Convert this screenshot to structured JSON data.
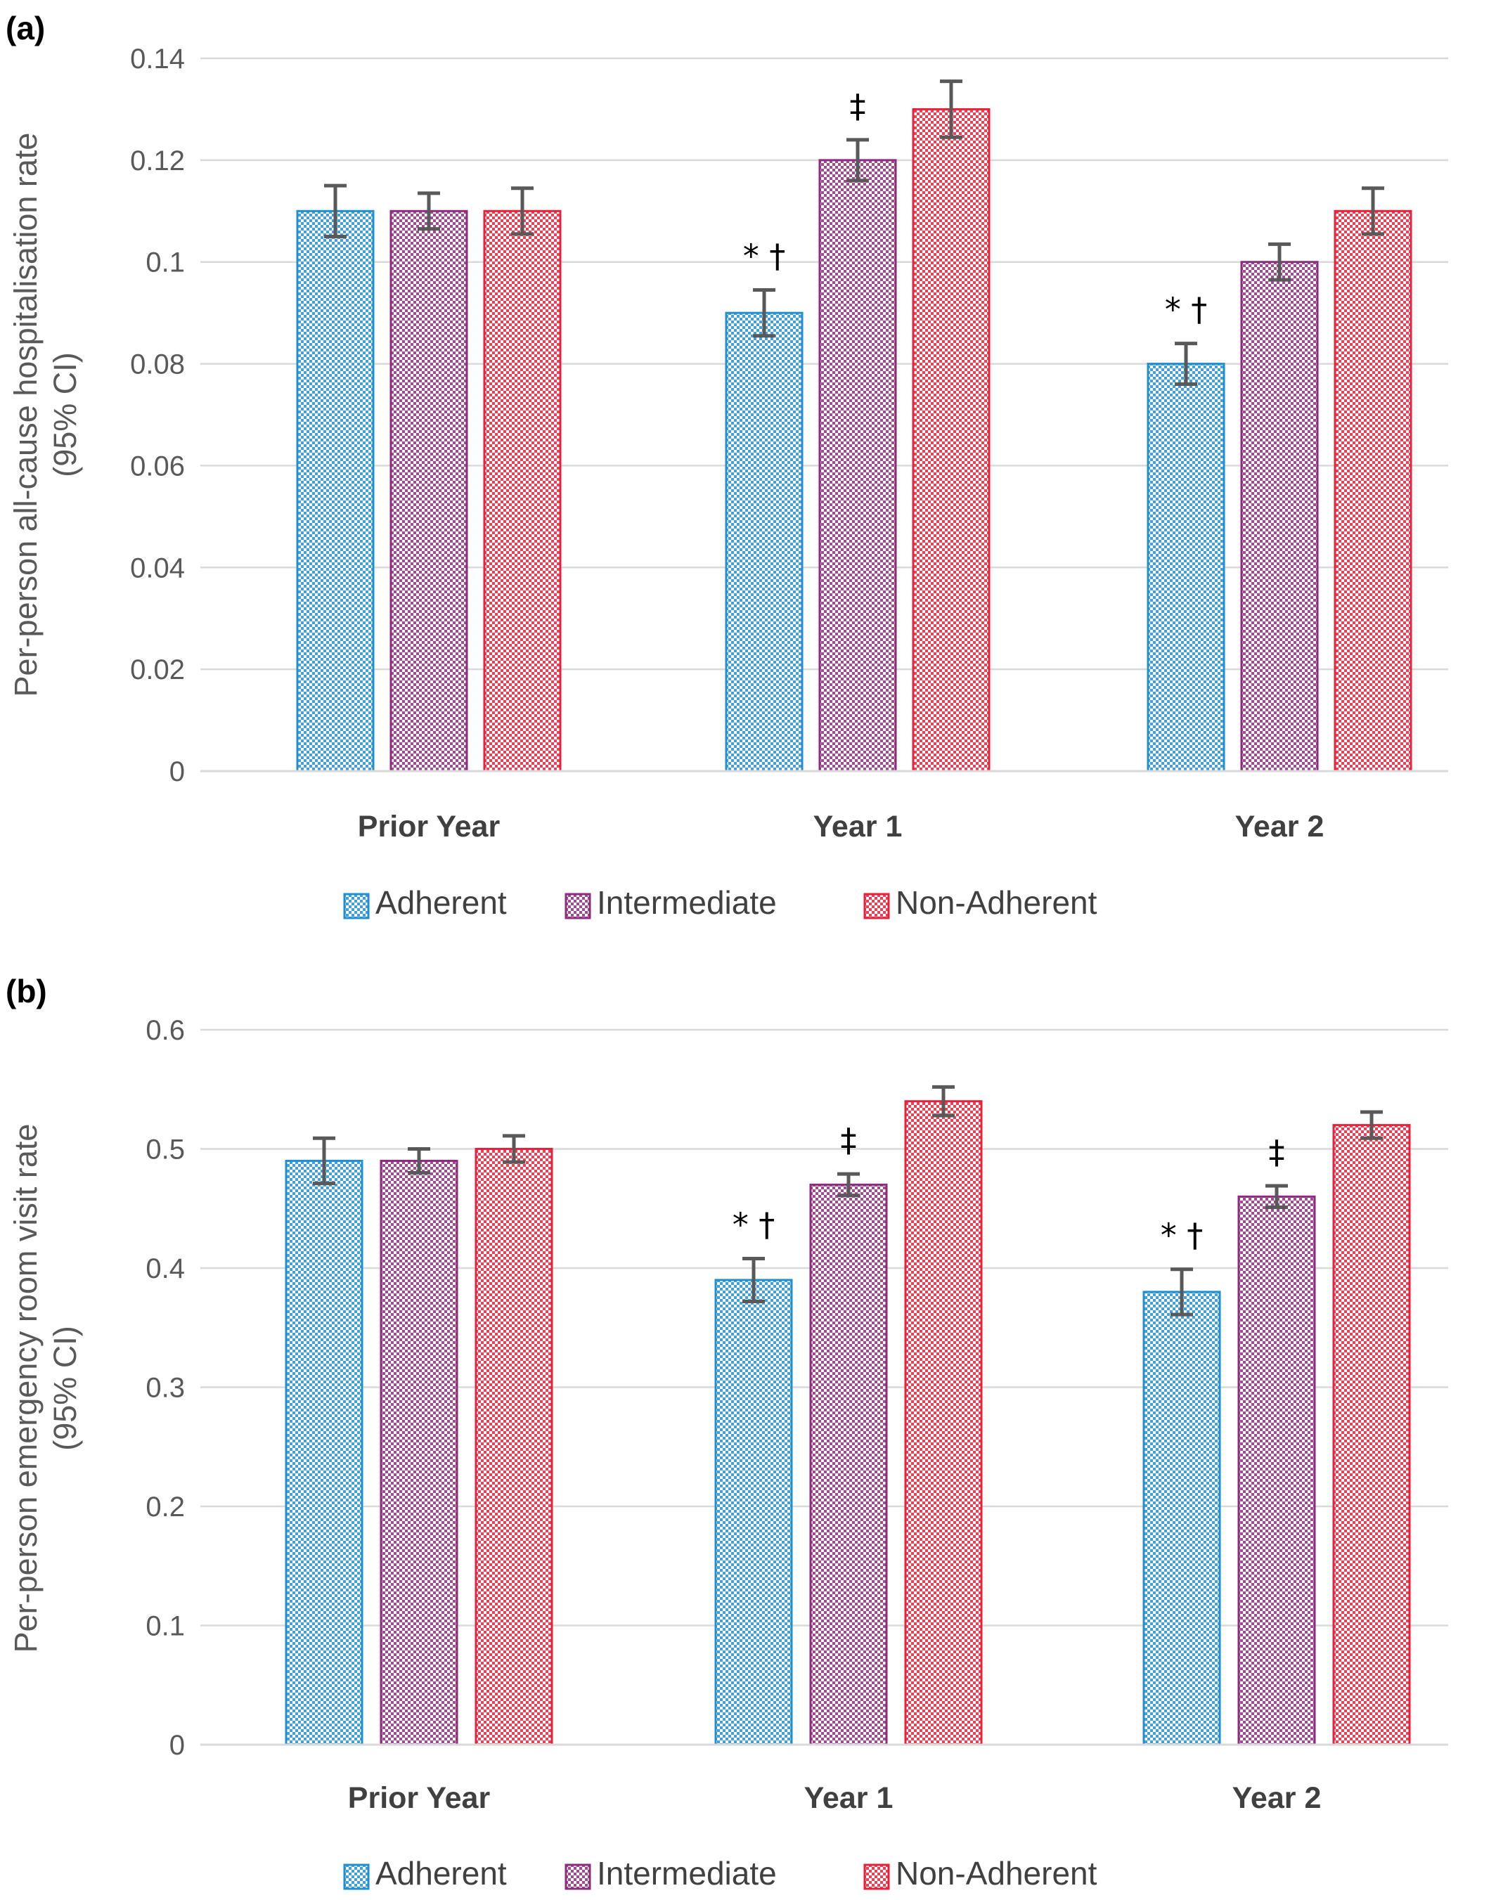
{
  "colors": {
    "Adherent": "#1f8fd0",
    "Intermediate": "#8e2b7e",
    "Non-Adherent": "#e8203a",
    "error_bar": "#595959",
    "grid": "#d9d9d9"
  },
  "chart_data": [
    {
      "type": "bar",
      "panel_label": "(a)",
      "title": "",
      "ylabel_lines": [
        "Per-person all-cause hospitalisation rate",
        "(95% CI)"
      ],
      "xlabel": "",
      "categories": [
        "Prior Year",
        "Year 1",
        "Year 2"
      ],
      "ylim": [
        0,
        0.14
      ],
      "yticks": [
        0,
        0.02,
        0.04,
        0.06,
        0.08,
        0.1,
        0.12,
        0.14
      ],
      "ytick_labels": [
        "0",
        "0.02",
        "0.04",
        "0.06",
        "0.08",
        "0.1",
        "0.12",
        "0.14"
      ],
      "grid": true,
      "legend_position": "bottom",
      "series": [
        {
          "name": "Adherent",
          "values": [
            0.11,
            0.09,
            0.08
          ],
          "ci_low": [
            0.105,
            0.0855,
            0.076
          ],
          "ci_high": [
            0.115,
            0.0945,
            0.084
          ]
        },
        {
          "name": "Intermediate",
          "values": [
            0.11,
            0.12,
            0.1
          ],
          "ci_low": [
            0.1065,
            0.116,
            0.0965
          ],
          "ci_high": [
            0.1135,
            0.124,
            0.1035
          ]
        },
        {
          "name": "Non-Adherent",
          "values": [
            0.11,
            0.13,
            0.11
          ],
          "ci_low": [
            0.1055,
            0.1245,
            0.1055
          ],
          "ci_high": [
            0.1145,
            0.1355,
            0.1145
          ]
        }
      ],
      "annotations": [
        {
          "category": "Year 1",
          "series": "Adherent",
          "text": "* †"
        },
        {
          "category": "Year 1",
          "series": "Intermediate",
          "text": "‡"
        },
        {
          "category": "Year 2",
          "series": "Adherent",
          "text": "* †"
        }
      ]
    },
    {
      "type": "bar",
      "panel_label": "(b)",
      "title": "",
      "ylabel_lines": [
        "Per-person emergency room visit rate",
        "(95% CI)"
      ],
      "xlabel": "",
      "categories": [
        "Prior Year",
        "Year 1",
        "Year 2"
      ],
      "ylim": [
        0,
        0.6
      ],
      "yticks": [
        0,
        0.1,
        0.2,
        0.3,
        0.4,
        0.5,
        0.6
      ],
      "ytick_labels": [
        "0",
        "0.1",
        "0.2",
        "0.3",
        "0.4",
        "0.5",
        "0.6"
      ],
      "grid": true,
      "legend_position": "bottom",
      "series": [
        {
          "name": "Adherent",
          "values": [
            0.49,
            0.39,
            0.38
          ],
          "ci_low": [
            0.471,
            0.372,
            0.361
          ],
          "ci_high": [
            0.509,
            0.408,
            0.399
          ]
        },
        {
          "name": "Intermediate",
          "values": [
            0.49,
            0.47,
            0.46
          ],
          "ci_low": [
            0.48,
            0.461,
            0.451
          ],
          "ci_high": [
            0.5,
            0.479,
            0.469
          ]
        },
        {
          "name": "Non-Adherent",
          "values": [
            0.5,
            0.54,
            0.52
          ],
          "ci_low": [
            0.489,
            0.528,
            0.509
          ],
          "ci_high": [
            0.511,
            0.552,
            0.531
          ]
        }
      ],
      "annotations": [
        {
          "category": "Year 1",
          "series": "Adherent",
          "text": "* †"
        },
        {
          "category": "Year 1",
          "series": "Intermediate",
          "text": "‡"
        },
        {
          "category": "Year 2",
          "series": "Adherent",
          "text": "* †"
        },
        {
          "category": "Year 2",
          "series": "Intermediate",
          "text": "‡"
        }
      ]
    }
  ]
}
